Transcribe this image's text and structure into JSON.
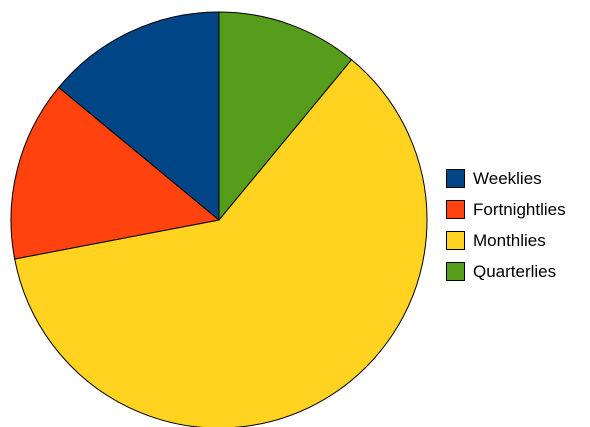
{
  "chart_data": {
    "type": "pie",
    "title": "",
    "series": [
      {
        "label": "Weeklies",
        "value": 14,
        "color": "#004586"
      },
      {
        "label": "Fortnightlies",
        "value": 14,
        "color": "#ff420e"
      },
      {
        "label": "Monthlies",
        "value": 61,
        "color": "#ffd320"
      },
      {
        "label": "Quarterlies",
        "value": 11,
        "color": "#579d1c"
      }
    ],
    "legend_position": "right",
    "start_angle_deg": 0,
    "direction": "clockwise"
  }
}
